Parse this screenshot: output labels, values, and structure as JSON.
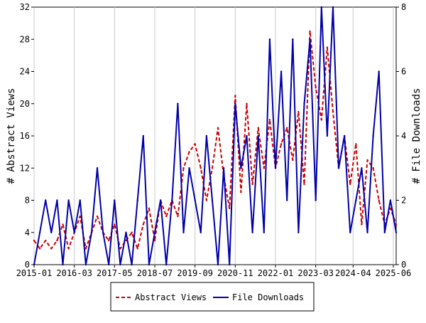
{
  "chart_data": {
    "type": "line",
    "title": "",
    "ylabel": "# Abstract Views",
    "y2label": "# File Downloads",
    "xlabel": "",
    "ylim": [
      0,
      32
    ],
    "y2lim": [
      0,
      8
    ],
    "yticks": [
      0,
      4,
      8,
      12,
      16,
      20,
      24,
      28,
      32
    ],
    "y2ticks": [
      0,
      2,
      4,
      6,
      8
    ],
    "xlim": [
      "2015-01",
      "2025-07"
    ],
    "xticks": [
      "2015-01",
      "2016-03",
      "2017-05",
      "2018-07",
      "2019-09",
      "2020-11",
      "2022-01",
      "2023-03",
      "2024-04",
      "2025-06"
    ],
    "grid": "vertical",
    "legend_position": "bottom",
    "series": [
      {
        "name": "Abstract Views",
        "axis": "left",
        "color": "#cc0000",
        "dash": true,
        "points": [
          [
            "2015-01",
            3
          ],
          [
            "2015-03",
            2
          ],
          [
            "2015-05",
            3
          ],
          [
            "2015-07",
            2
          ],
          [
            "2015-09",
            3
          ],
          [
            "2015-11",
            5
          ],
          [
            "2016-01",
            2
          ],
          [
            "2016-03",
            4
          ],
          [
            "2016-05",
            6
          ],
          [
            "2016-07",
            2
          ],
          [
            "2016-09",
            4
          ],
          [
            "2016-11",
            6
          ],
          [
            "2017-01",
            4
          ],
          [
            "2017-03",
            3
          ],
          [
            "2017-05",
            5
          ],
          [
            "2017-07",
            2
          ],
          [
            "2017-09",
            3
          ],
          [
            "2017-11",
            4
          ],
          [
            "2018-01",
            2
          ],
          [
            "2018-03",
            5
          ],
          [
            "2018-05",
            7
          ],
          [
            "2018-07",
            3
          ],
          [
            "2018-09",
            8
          ],
          [
            "2018-11",
            6
          ],
          [
            "2019-01",
            8
          ],
          [
            "2019-03",
            6
          ],
          [
            "2019-05",
            12
          ],
          [
            "2019-07",
            14
          ],
          [
            "2019-09",
            15
          ],
          [
            "2019-11",
            12
          ],
          [
            "2020-01",
            8
          ],
          [
            "2020-03",
            12
          ],
          [
            "2020-05",
            17
          ],
          [
            "2020-07",
            11
          ],
          [
            "2020-09",
            7
          ],
          [
            "2020-11",
            21
          ],
          [
            "2021-01",
            9
          ],
          [
            "2021-03",
            20
          ],
          [
            "2021-05",
            10
          ],
          [
            "2021-07",
            17
          ],
          [
            "2021-09",
            12
          ],
          [
            "2021-11",
            18
          ],
          [
            "2022-01",
            12
          ],
          [
            "2022-03",
            15
          ],
          [
            "2022-05",
            17
          ],
          [
            "2022-07",
            13
          ],
          [
            "2022-09",
            19
          ],
          [
            "2022-11",
            10
          ],
          [
            "2023-01",
            29
          ],
          [
            "2023-03",
            22
          ],
          [
            "2023-05",
            18
          ],
          [
            "2023-07",
            27
          ],
          [
            "2023-09",
            19
          ],
          [
            "2023-11",
            12
          ],
          [
            "2024-01",
            16
          ],
          [
            "2024-03",
            10
          ],
          [
            "2024-05",
            15
          ],
          [
            "2024-07",
            5
          ],
          [
            "2024-09",
            13
          ],
          [
            "2024-11",
            12
          ],
          [
            "2025-01",
            8
          ],
          [
            "2025-03",
            5
          ],
          [
            "2025-05",
            7
          ],
          [
            "2025-07",
            5
          ]
        ]
      },
      {
        "name": "File Downloads",
        "axis": "right",
        "color": "#0000aa",
        "dash": false,
        "points": [
          [
            "2015-01",
            0
          ],
          [
            "2015-03",
            1
          ],
          [
            "2015-05",
            2
          ],
          [
            "2015-07",
            1
          ],
          [
            "2015-09",
            2
          ],
          [
            "2015-11",
            0
          ],
          [
            "2016-01",
            2
          ],
          [
            "2016-03",
            1
          ],
          [
            "2016-05",
            2
          ],
          [
            "2016-07",
            0
          ],
          [
            "2016-09",
            1
          ],
          [
            "2016-11",
            3
          ],
          [
            "2017-01",
            1
          ],
          [
            "2017-03",
            0
          ],
          [
            "2017-05",
            2
          ],
          [
            "2017-07",
            0
          ],
          [
            "2017-09",
            1
          ],
          [
            "2017-11",
            0
          ],
          [
            "2018-01",
            2
          ],
          [
            "2018-03",
            4
          ],
          [
            "2018-05",
            0
          ],
          [
            "2018-07",
            1
          ],
          [
            "2018-09",
            2
          ],
          [
            "2018-11",
            0
          ],
          [
            "2019-01",
            2
          ],
          [
            "2019-03",
            5
          ],
          [
            "2019-05",
            1
          ],
          [
            "2019-07",
            3
          ],
          [
            "2019-09",
            2
          ],
          [
            "2019-11",
            1
          ],
          [
            "2020-01",
            4
          ],
          [
            "2020-03",
            2
          ],
          [
            "2020-05",
            0
          ],
          [
            "2020-07",
            3
          ],
          [
            "2020-09",
            0
          ],
          [
            "2020-11",
            5
          ],
          [
            "2021-01",
            3
          ],
          [
            "2021-03",
            4
          ],
          [
            "2021-05",
            1
          ],
          [
            "2021-07",
            4
          ],
          [
            "2021-09",
            1
          ],
          [
            "2021-11",
            7
          ],
          [
            "2022-01",
            3
          ],
          [
            "2022-03",
            6
          ],
          [
            "2022-05",
            2
          ],
          [
            "2022-07",
            7
          ],
          [
            "2022-09",
            1
          ],
          [
            "2022-11",
            5
          ],
          [
            "2023-01",
            7
          ],
          [
            "2023-03",
            2
          ],
          [
            "2023-05",
            8
          ],
          [
            "2023-07",
            4
          ],
          [
            "2023-09",
            8
          ],
          [
            "2023-11",
            3
          ],
          [
            "2024-01",
            4
          ],
          [
            "2024-03",
            1
          ],
          [
            "2024-05",
            2
          ],
          [
            "2024-07",
            3
          ],
          [
            "2024-09",
            1
          ],
          [
            "2024-11",
            4
          ],
          [
            "2025-01",
            6
          ],
          [
            "2025-03",
            1
          ],
          [
            "2025-05",
            2
          ],
          [
            "2025-07",
            1
          ]
        ]
      }
    ]
  }
}
